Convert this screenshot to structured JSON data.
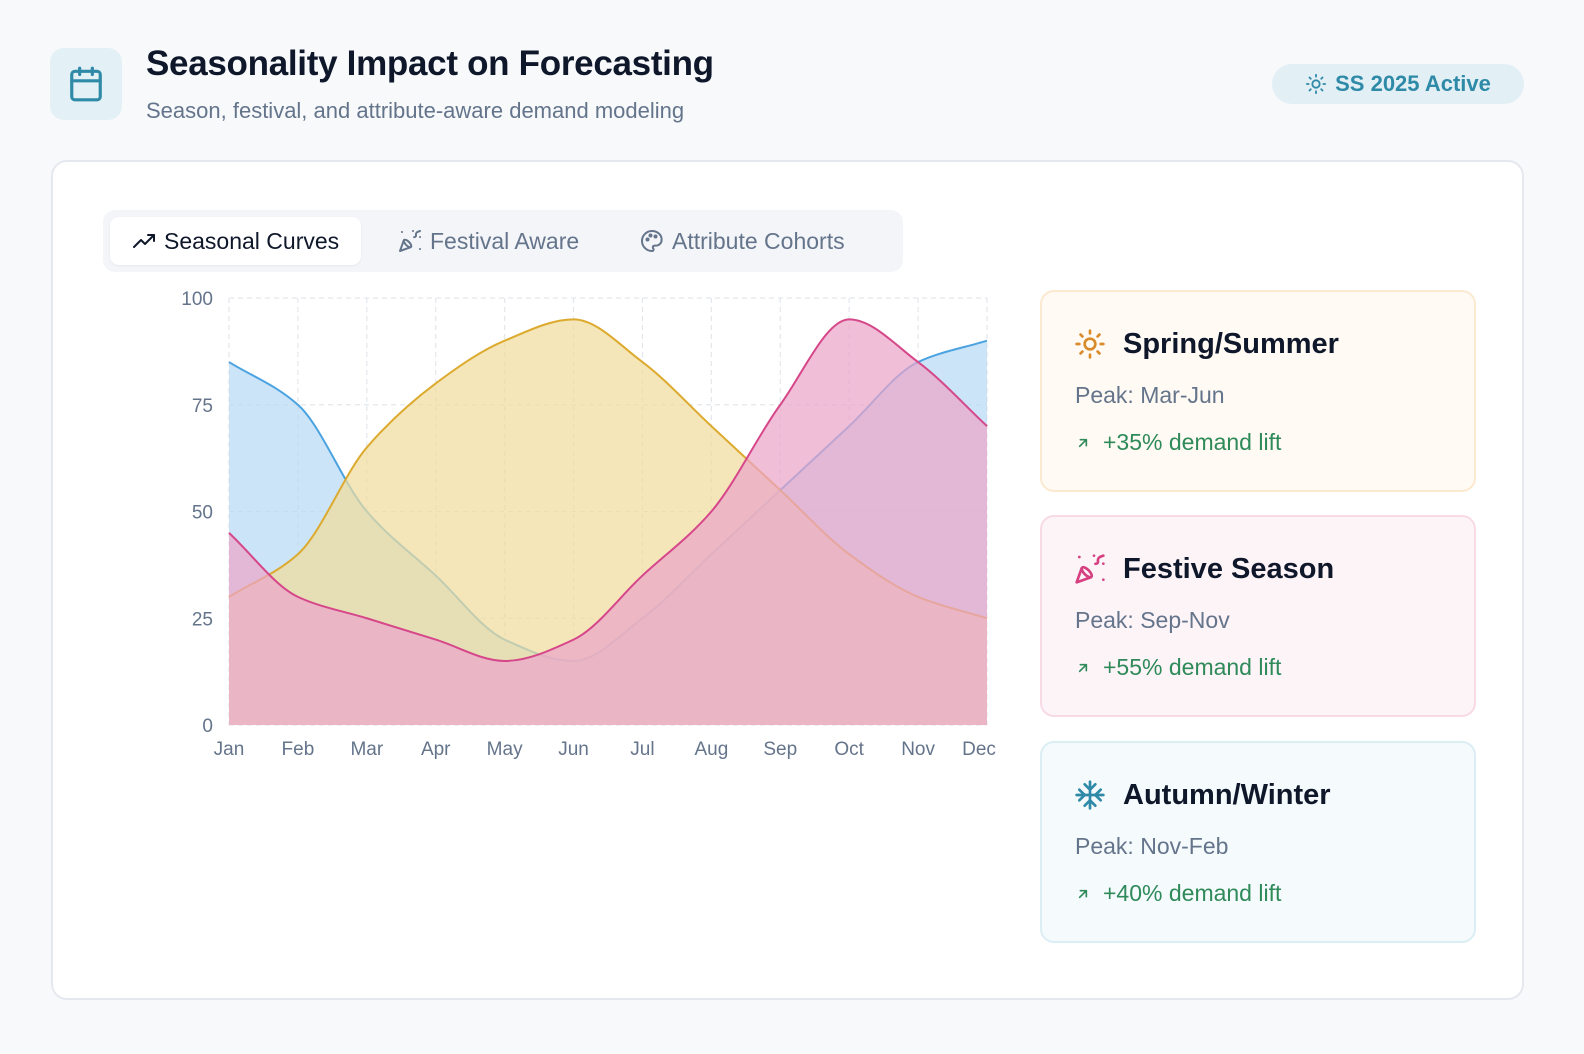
{
  "header": {
    "title": "Seasonality Impact on Forecasting",
    "subtitle": "Season, festival, and attribute-aware demand modeling",
    "badge": "SS 2025 Active"
  },
  "tabs": [
    {
      "label": "Seasonal Curves",
      "icon": "trending-up-icon",
      "active": true
    },
    {
      "label": "Festival Aware",
      "icon": "party-popper-icon",
      "active": false
    },
    {
      "label": "Attribute Cohorts",
      "icon": "palette-icon",
      "active": false
    }
  ],
  "season_cards": [
    {
      "title": "Spring/Summer",
      "peak": "Peak: Mar-Jun",
      "lift": "+35% demand lift",
      "icon": "sun-icon",
      "color": "#d98a2b",
      "bg": "#fffaf3",
      "border": "#fbe9d0"
    },
    {
      "title": "Festive Season",
      "peak": "Peak: Sep-Nov",
      "lift": "+55% demand lift",
      "icon": "party-popper-icon",
      "color": "#d63f80",
      "bg": "#fdf4f8",
      "border": "#f8dae7"
    },
    {
      "title": "Autumn/Winter",
      "peak": "Peak: Nov-Feb",
      "lift": "+40% demand lift",
      "icon": "snowflake-icon",
      "color": "#2f8aa8",
      "bg": "#f5fafc",
      "border": "#dbeef4"
    }
  ],
  "chart_data": {
    "type": "area",
    "categories": [
      "Jan",
      "Feb",
      "Mar",
      "Apr",
      "May",
      "Jun",
      "Jul",
      "Aug",
      "Sep",
      "Oct",
      "Nov",
      "Dec"
    ],
    "ylim": [
      0,
      100
    ],
    "yticks": [
      0,
      25,
      50,
      75,
      100
    ],
    "grid": true,
    "series": [
      {
        "name": "Autumn/Winter",
        "values": [
          85,
          75,
          50,
          35,
          20,
          15,
          25,
          40,
          55,
          70,
          85,
          90
        ],
        "stroke": "#4aa3e0",
        "fill": "#b8d9f4"
      },
      {
        "name": "Spring/Summer",
        "values": [
          30,
          40,
          65,
          80,
          90,
          95,
          85,
          70,
          55,
          40,
          30,
          25
        ],
        "stroke": "#dcaa2e",
        "fill": "#f0dc9c"
      },
      {
        "name": "Festive Season",
        "values": [
          45,
          30,
          25,
          20,
          15,
          20,
          35,
          50,
          75,
          95,
          85,
          70
        ],
        "stroke": "#d6478a",
        "fill": "#eca5c9"
      }
    ]
  }
}
